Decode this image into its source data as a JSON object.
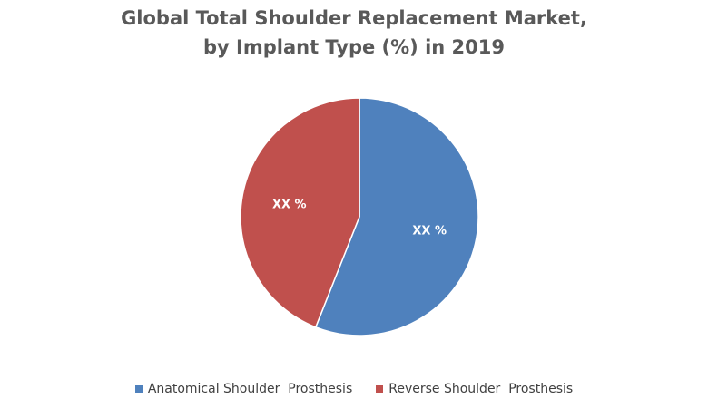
{
  "title_line1": "Global Total Shoulder Replacement Market,",
  "title_line2": "by Implant Type (%) in 2019",
  "chart_data": {
    "type": "pie",
    "title": "Global Total Shoulder Replacement Market, by Implant Type (%) in 2019",
    "legend_position": "bottom",
    "slices": [
      {
        "name": "Anatomical Shoulder  Prosthesis",
        "value": 56,
        "label": "XX %",
        "color": "#4f81bd"
      },
      {
        "name": "Reverse Shoulder  Prosthesis",
        "value": 44,
        "label": "XX %",
        "color": "#c0504d"
      }
    ]
  }
}
